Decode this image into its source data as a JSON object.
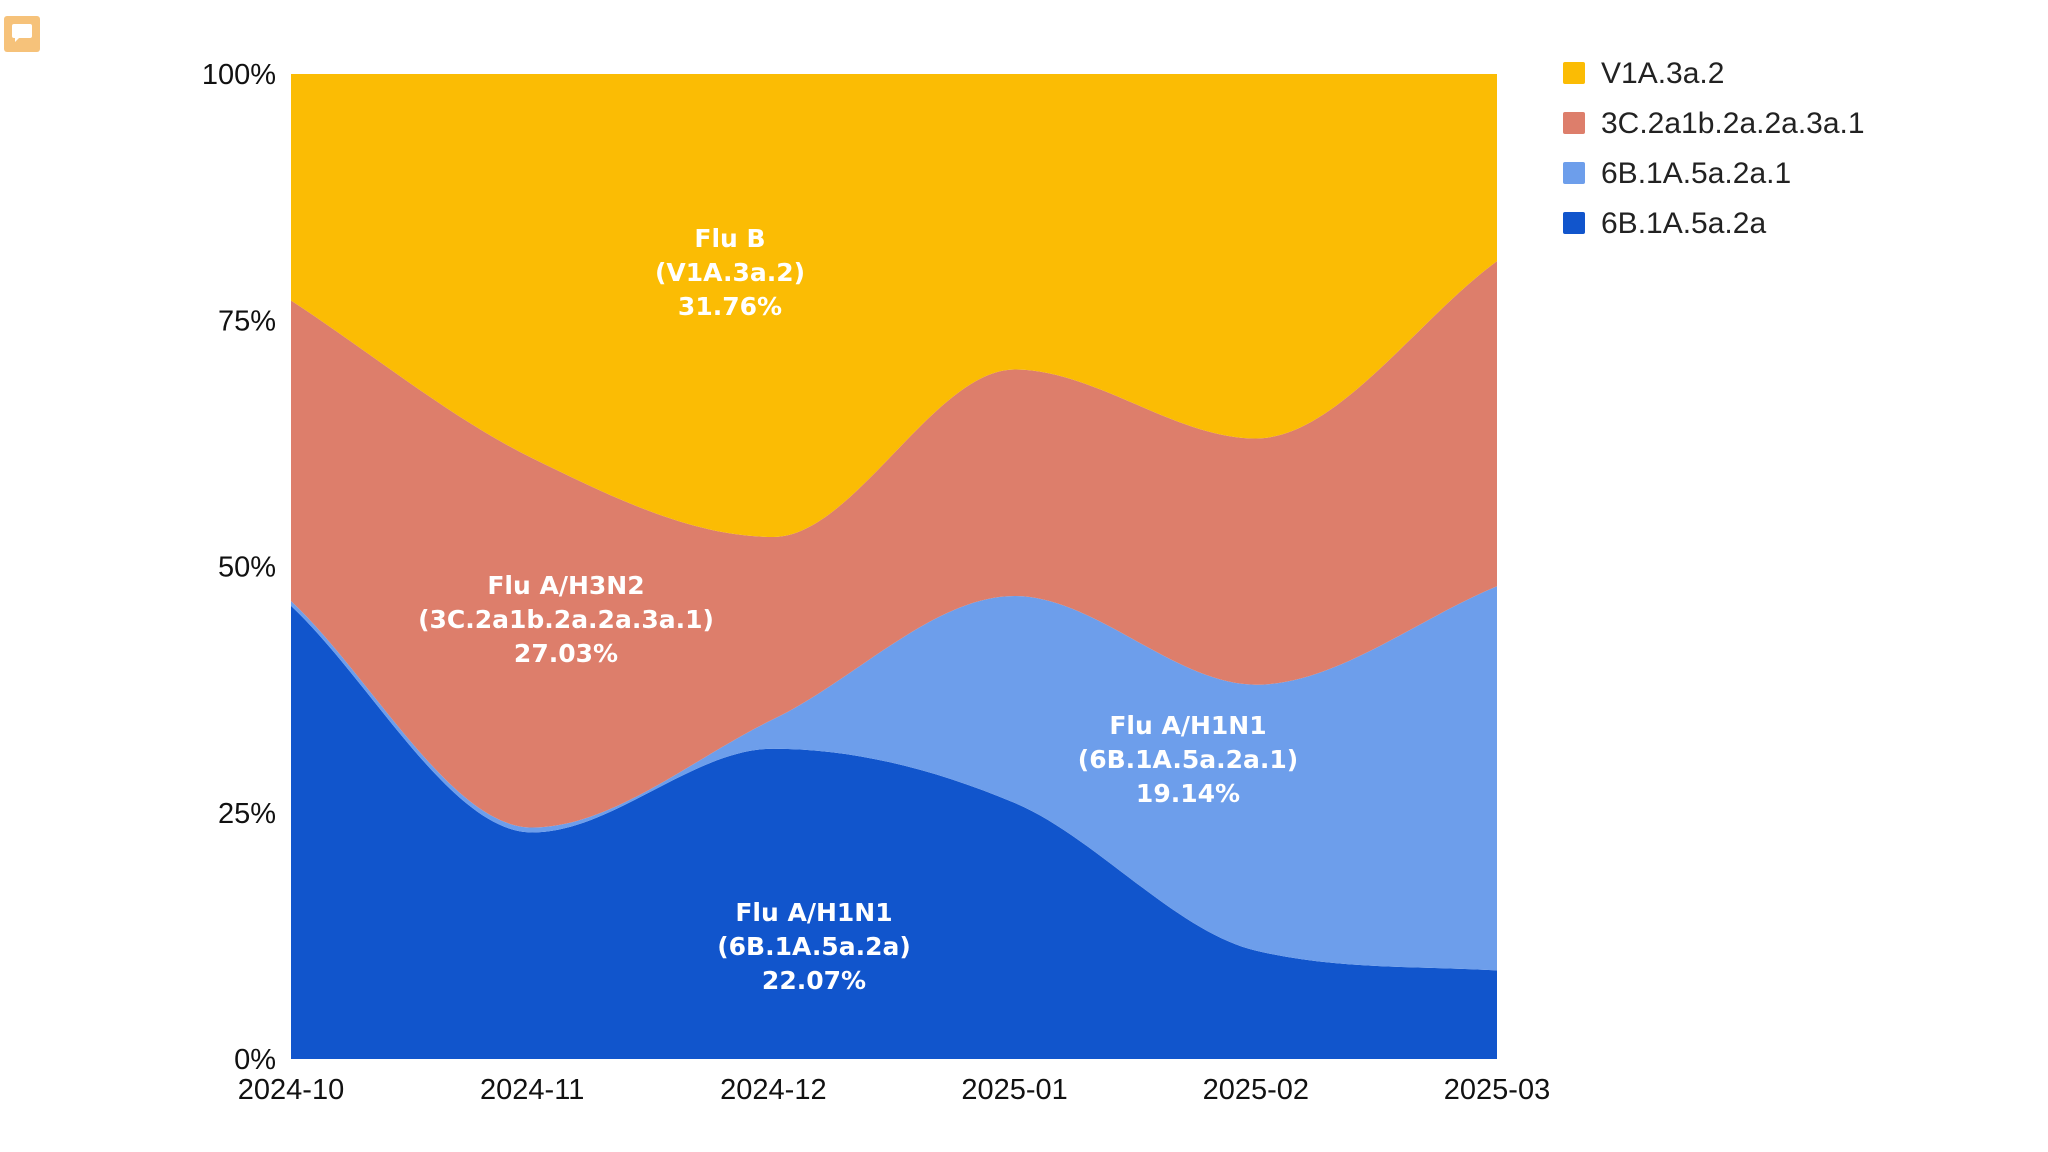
{
  "chart_data": {
    "type": "area",
    "stacked": true,
    "normalized": true,
    "title": "",
    "xlabel": "",
    "ylabel": "",
    "categories": [
      "2024-10",
      "2024-11",
      "2024-12",
      "2025-01",
      "2025-02",
      "2025-03"
    ],
    "ylim": [
      0,
      100
    ],
    "y_ticks": [
      "0%",
      "25%",
      "50%",
      "75%",
      "100%"
    ],
    "grid": false,
    "legend_position": "right",
    "series": [
      {
        "name": "6B.1A.5a.2a",
        "color": "#1155cc",
        "values": [
          46,
          23,
          31.5,
          26,
          11,
          9
        ]
      },
      {
        "name": "6B.1A.5a.2a.1",
        "color": "#6d9eeb",
        "values": [
          0.5,
          0.5,
          3,
          21,
          27,
          39
        ]
      },
      {
        "name": "3C.2a1b.2a.2a.3a.1",
        "color": "#dd7e6b",
        "values": [
          30.5,
          37.5,
          18.5,
          23,
          25,
          33
        ]
      },
      {
        "name": "V1A.3a.2",
        "color": "#fbbc04",
        "values": [
          23,
          39,
          47,
          30,
          37,
          19
        ]
      }
    ],
    "annotations": [
      {
        "lines": [
          "Flu B",
          "(V1A.3a.2)",
          "31.76%"
        ],
        "series": "V1A.3a.2"
      },
      {
        "lines": [
          "Flu A/H3N2",
          "(3C.2a1b.2a.2a.3a.1)",
          "27.03%"
        ],
        "series": "3C.2a1b.2a.2a.3a.1"
      },
      {
        "lines": [
          "Flu A/H1N1",
          "(6B.1A.5a.2a.1)",
          "19.14%"
        ],
        "series": "6B.1A.5a.2a.1"
      },
      {
        "lines": [
          "Flu A/H1N1",
          "(6B.1A.5a.2a)",
          "22.07%"
        ],
        "series": "6B.1A.5a.2a"
      }
    ]
  },
  "icons": {
    "comment": "comment-icon"
  }
}
